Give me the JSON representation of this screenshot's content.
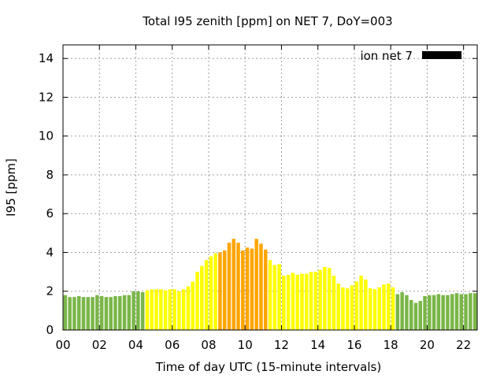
{
  "chart_data": {
    "type": "bar",
    "title": "Total I95 zenith [ppm] on NET 7, DoY=003",
    "xlabel": "Time of day UTC (15-minute intervals)",
    "ylabel": "I95 [ppm]",
    "ylim": [
      0,
      14.7
    ],
    "xlim": [
      0,
      22.75
    ],
    "yticks": [
      0,
      2,
      4,
      6,
      8,
      10,
      12,
      14
    ],
    "xticks": [
      "00",
      "02",
      "04",
      "06",
      "08",
      "10",
      "12",
      "14",
      "16",
      "18",
      "20",
      "22"
    ],
    "grid": true,
    "legend": {
      "label": "ion net 7",
      "position": "top-right",
      "color": "#000000"
    },
    "colors": {
      "green": "#7ab648",
      "yellow": "#ffff00",
      "orange": "#ffa500"
    },
    "interval_hours": 0.25,
    "values": [
      1.8,
      1.7,
      1.7,
      1.75,
      1.7,
      1.7,
      1.7,
      1.8,
      1.75,
      1.7,
      1.7,
      1.75,
      1.75,
      1.8,
      1.8,
      2.0,
      2.0,
      1.95,
      2.05,
      2.1,
      2.1,
      2.1,
      2.05,
      2.1,
      2.1,
      2.0,
      2.1,
      2.25,
      2.5,
      3.0,
      3.3,
      3.6,
      3.8,
      3.95,
      4.0,
      4.1,
      4.5,
      4.7,
      4.5,
      4.1,
      4.25,
      4.2,
      4.7,
      4.45,
      4.15,
      3.6,
      3.35,
      3.4,
      2.8,
      2.85,
      2.95,
      2.85,
      2.9,
      2.9,
      3.0,
      3.0,
      3.1,
      3.25,
      3.2,
      2.8,
      2.4,
      2.2,
      2.15,
      2.3,
      2.5,
      2.8,
      2.6,
      2.15,
      2.1,
      2.2,
      2.35,
      2.4,
      2.2,
      1.85,
      1.95,
      1.8,
      1.55,
      1.4,
      1.5,
      1.75,
      1.8,
      1.8,
      1.85,
      1.8,
      1.8,
      1.85,
      1.9,
      1.85,
      1.85,
      1.9,
      1.9
    ],
    "bar_colors": [
      "green",
      "green",
      "green",
      "green",
      "green",
      "green",
      "green",
      "green",
      "green",
      "green",
      "green",
      "green",
      "green",
      "green",
      "green",
      "green",
      "green",
      "green",
      "yellow",
      "yellow",
      "yellow",
      "yellow",
      "yellow",
      "yellow",
      "yellow",
      "yellow",
      "yellow",
      "yellow",
      "yellow",
      "yellow",
      "yellow",
      "yellow",
      "yellow",
      "yellow",
      "orange",
      "orange",
      "orange",
      "orange",
      "orange",
      "orange",
      "orange",
      "orange",
      "orange",
      "orange",
      "orange",
      "yellow",
      "yellow",
      "yellow",
      "yellow",
      "yellow",
      "yellow",
      "yellow",
      "yellow",
      "yellow",
      "yellow",
      "yellow",
      "yellow",
      "yellow",
      "yellow",
      "yellow",
      "yellow",
      "yellow",
      "yellow",
      "yellow",
      "yellow",
      "yellow",
      "yellow",
      "yellow",
      "yellow",
      "yellow",
      "yellow",
      "yellow",
      "yellow",
      "green",
      "green",
      "green",
      "green",
      "green",
      "green",
      "green",
      "green",
      "green",
      "green",
      "green",
      "green",
      "green",
      "green",
      "green",
      "green",
      "green",
      "green"
    ]
  }
}
